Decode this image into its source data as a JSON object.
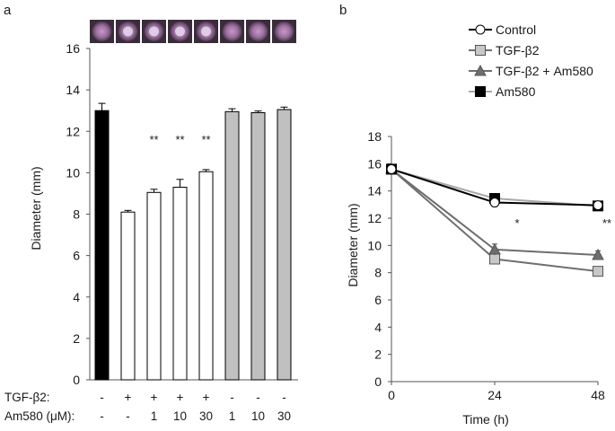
{
  "chart_data": [
    {
      "panel": "a",
      "type": "bar",
      "ylabel": "Diameter (mm)",
      "ylim": [
        0,
        16
      ],
      "yticks": [
        0,
        2,
        4,
        6,
        8,
        10,
        12,
        14,
        16
      ],
      "row_labels": [
        "TGF-β2:",
        "Am580 (μM):"
      ],
      "tgf_row": [
        "-",
        "+",
        "+",
        "+",
        "+",
        "-",
        "-",
        "-"
      ],
      "am580_row": [
        "-",
        "-",
        "1",
        "10",
        "30",
        "1",
        "10",
        "30"
      ],
      "values": [
        13.0,
        8.1,
        9.05,
        9.3,
        10.05,
        12.95,
        12.9,
        13.05
      ],
      "errors": [
        0.35,
        0.08,
        0.15,
        0.38,
        0.1,
        0.14,
        0.08,
        0.12
      ],
      "fills": [
        "#000000",
        "#ffffff",
        "#ffffff",
        "#ffffff",
        "#ffffff",
        "#c0c0c0",
        "#c0c0c0",
        "#c0c0c0"
      ],
      "significance": [
        "",
        "",
        "**",
        "**",
        "**",
        "",
        "",
        ""
      ],
      "well_images": [
        "well-1",
        "well-2",
        "well-3",
        "well-4",
        "well-5",
        "well-6",
        "well-7",
        "well-8"
      ]
    },
    {
      "panel": "b",
      "type": "line",
      "xlabel": "Time (h)",
      "ylabel": "Diameter (mm)",
      "x": [
        0,
        24,
        48
      ],
      "xticks": [
        0,
        24,
        48
      ],
      "xlim": [
        0,
        48
      ],
      "ylim": [
        0,
        18
      ],
      "yticks": [
        0,
        2,
        4,
        6,
        8,
        10,
        12,
        14,
        16,
        18
      ],
      "series": [
        {
          "name": "Control",
          "values": [
            15.6,
            13.15,
            12.95
          ],
          "errors": [
            0.1,
            0.25,
            0.2
          ],
          "marker": "circle",
          "marker_fill": "#ffffff",
          "line_color": "#000000"
        },
        {
          "name": "TGF-β2",
          "values": [
            15.6,
            9.0,
            8.1
          ],
          "errors": [
            0.1,
            0.3,
            0.2
          ],
          "marker": "square",
          "marker_fill": "#c8c8c8",
          "line_color": "#707070"
        },
        {
          "name": "TGF-β2 + Am580",
          "values": [
            15.6,
            9.7,
            9.3
          ],
          "errors": [
            0.1,
            0.4,
            0.3
          ],
          "marker": "triangle",
          "marker_fill": "#6e6e6e",
          "line_color": "#6e6e6e"
        },
        {
          "name": "Am580",
          "values": [
            15.6,
            13.45,
            12.9
          ],
          "errors": [
            0.1,
            0.2,
            0.25
          ],
          "marker": "square",
          "marker_fill": "#000000",
          "line_color": "#a8a8a8"
        }
      ],
      "annotations": [
        {
          "x": 24,
          "text": "*"
        },
        {
          "x": 48,
          "text": "**"
        }
      ],
      "legend_position": "top"
    }
  ]
}
